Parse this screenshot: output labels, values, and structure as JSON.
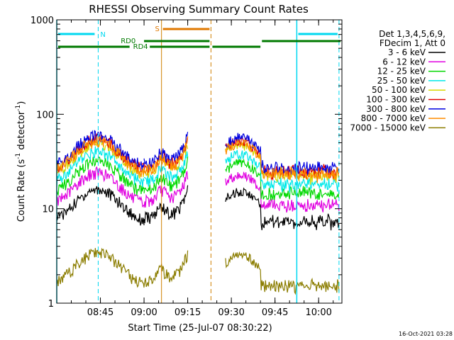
{
  "chart_data": {
    "type": "line",
    "title": "RHESSI Observing Summary Count Rates",
    "xlabel": "Start Time (25-Jul-07 08:30:22)",
    "ylabel_main": "Count Rate (s",
    "ylabel_sup1": "-1",
    "ylabel_mid": " detector",
    "ylabel_sup2": "-1",
    "ylabel_end": ")",
    "y_scale": "log",
    "ylim": [
      1,
      1000
    ],
    "xlim": [
      "08:30",
      "10:08"
    ],
    "x_ticks": [
      "08:45",
      "09:00",
      "09:15",
      "09:30",
      "09:45",
      "10:00"
    ],
    "y_ticks": [
      "1",
      "10",
      "100",
      "1000"
    ],
    "timestamp": "16-Oct-2021 03:28",
    "legend_header": [
      "Det 1,3,4,5,6,9,",
      "FDecim 1, Att 0"
    ],
    "series": [
      {
        "name": "3 - 6 keV",
        "color": "#000000"
      },
      {
        "name": "6 - 12 keV",
        "color": "#e000e0"
      },
      {
        "name": "12 - 25 keV",
        "color": "#00d800"
      },
      {
        "name": "25 - 50 keV",
        "color": "#00e8e8"
      },
      {
        "name": "50 - 100 keV",
        "color": "#d8d800"
      },
      {
        "name": "100 - 300 keV",
        "color": "#e00000"
      },
      {
        "name": "300 - 800 keV",
        "color": "#0000e0"
      },
      {
        "name": "800 - 7000 keV",
        "color": "#ff8c00"
      },
      {
        "name": "7000 - 15000 keV",
        "color": "#8b7d00"
      }
    ],
    "flag_labels": {
      "N": "N",
      "S": "S",
      "RD0": "RD0",
      "RD4": "RD4"
    }
  }
}
